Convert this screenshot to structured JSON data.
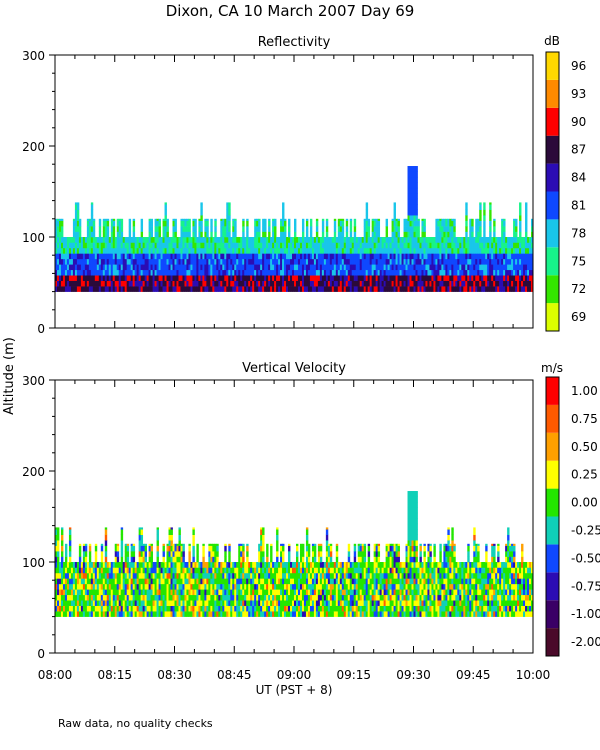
{
  "main_title": "Dixon, CA 10 March 2007  Day  69",
  "shared_ylabel": "Altitude (m)",
  "footnote": "Raw data, no quality checks",
  "chart_data": [
    {
      "type": "heatmap",
      "title": "Reflectivity",
      "xlabel": "",
      "ylabel": "Altitude (m)",
      "xlim": [
        "08:00",
        "10:00"
      ],
      "ylim": [
        0,
        300
      ],
      "xticks": [],
      "yticks": [
        0,
        100,
        200,
        300
      ],
      "colorbar": {
        "label": "dB",
        "tick_labels": [
          "69",
          "72",
          "75",
          "78",
          "81",
          "84",
          "87",
          "90",
          "93",
          "96"
        ],
        "colors": [
          "#dcff00",
          "#34e600",
          "#17f38a",
          "#19c6ea",
          "#0f48ff",
          "#2b0cb4",
          "#2b0a3a",
          "#ff0000",
          "#ff8a00",
          "#ffd800"
        ]
      },
      "observed": {
        "data_floor_m": 40,
        "typical_top_m": [
          100,
          120
        ],
        "max_echo_m": 178,
        "max_echo_time": "09:33",
        "layers": [
          {
            "from_m": 40,
            "to_m": 55,
            "dB": "84-90"
          },
          {
            "from_m": 55,
            "to_m": 80,
            "dB": "81-84"
          },
          {
            "from_m": 80,
            "to_m": 120,
            "dB": "75-78"
          }
        ]
      }
    },
    {
      "type": "heatmap",
      "title": "Vertical Velocity",
      "xlabel": "UT  (PST + 8)",
      "ylabel": "Altitude (m)",
      "xlim": [
        "08:00",
        "10:00"
      ],
      "ylim": [
        0,
        300
      ],
      "xticks": [
        "08:00",
        "08:15",
        "08:30",
        "08:45",
        "09:00",
        "09:15",
        "09:30",
        "09:45",
        "10:00"
      ],
      "yticks": [
        0,
        100,
        200,
        300
      ],
      "colorbar": {
        "label": "m/s",
        "tick_labels": [
          "1.00",
          "0.75",
          "0.50",
          "0.25",
          "0.00",
          "-0.25",
          "-0.50",
          "-0.75",
          "-1.00",
          "-2.00"
        ],
        "colors": [
          "#ff0000",
          "#ff5a00",
          "#ffa000",
          "#ffff00",
          "#23e600",
          "#10d0b8",
          "#1048ff",
          "#2b0cb4",
          "#3a0066",
          "#4a0a2a"
        ]
      },
      "observed": {
        "data_floor_m": 40,
        "typical_top_m": [
          100,
          120
        ],
        "max_echo_m": 178,
        "max_echo_time": "09:33",
        "dominant_range_ms": [
          -0.25,
          0.25
        ]
      }
    }
  ]
}
